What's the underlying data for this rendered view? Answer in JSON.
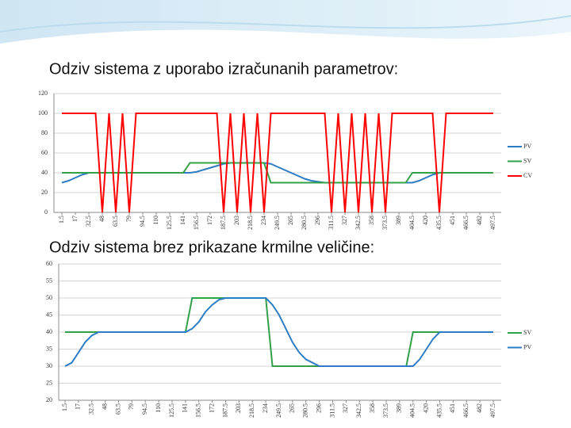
{
  "chart_data": [
    {
      "type": "line",
      "title": "Odziv sistema z uporabo izračunanih parametrov:",
      "x": [
        1.5,
        9.25,
        17,
        24.75,
        32.5,
        40.25,
        48,
        55.75,
        63.5,
        71.25,
        79,
        86.75,
        94.5,
        102.25,
        110,
        117.75,
        125.5,
        133.25,
        141,
        148.75,
        156.5,
        164.25,
        172,
        179.75,
        187.5,
        195.25,
        203,
        210.75,
        218.5,
        226.25,
        234,
        241.75,
        249.5,
        257.25,
        265,
        272.75,
        280.5,
        288.25,
        296,
        303.75,
        311.5,
        319.25,
        327,
        334.75,
        342.5,
        350.25,
        358,
        365.75,
        373.5,
        381.25,
        389,
        396.75,
        404.5,
        412.25,
        420,
        427.75,
        435.5,
        443.25,
        451,
        458.75,
        466.5,
        474.25,
        482,
        489.75,
        497.5
      ],
      "series": [
        {
          "name": "PV",
          "color": "#2e7dc4",
          "values": [
            30,
            32,
            35,
            38,
            40,
            40,
            40,
            40,
            40,
            40,
            40,
            40,
            40,
            40,
            40,
            40,
            40,
            40,
            40,
            40,
            41,
            43,
            45,
            47,
            49,
            50,
            50,
            50,
            50,
            50,
            50,
            49,
            46,
            43,
            40,
            37,
            34,
            32,
            31,
            30,
            30,
            30,
            30,
            30,
            30,
            30,
            30,
            30,
            30,
            30,
            30,
            30,
            30,
            32,
            35,
            38,
            40,
            40,
            40,
            40,
            40,
            40,
            40,
            40,
            40
          ]
        },
        {
          "name": "SV",
          "color": "#33a04a",
          "values": [
            40,
            40,
            40,
            40,
            40,
            40,
            40,
            40,
            40,
            40,
            40,
            40,
            40,
            40,
            40,
            40,
            40,
            40,
            40,
            50,
            50,
            50,
            50,
            50,
            50,
            50,
            50,
            50,
            50,
            50,
            50,
            30,
            30,
            30,
            30,
            30,
            30,
            30,
            30,
            30,
            30,
            30,
            30,
            30,
            30,
            30,
            30,
            30,
            30,
            30,
            30,
            30,
            40,
            40,
            40,
            40,
            40,
            40,
            40,
            40,
            40,
            40,
            40,
            40,
            40
          ]
        },
        {
          "name": "CV",
          "color": "#ff0000",
          "values": [
            100,
            100,
            100,
            100,
            100,
            100,
            0,
            100,
            0,
            100,
            0,
            100,
            100,
            100,
            100,
            100,
            100,
            100,
            100,
            100,
            100,
            100,
            100,
            100,
            0,
            100,
            0,
            100,
            0,
            100,
            0,
            100,
            100,
            100,
            100,
            100,
            100,
            100,
            100,
            100,
            0,
            100,
            0,
            100,
            0,
            100,
            0,
            100,
            0,
            100,
            100,
            100,
            100,
            100,
            100,
            100,
            0,
            100,
            100,
            100,
            100,
            100,
            100,
            100,
            100
          ]
        }
      ],
      "xlim": [
        1.5,
        497.5
      ],
      "xticks": [
        1.5,
        17,
        32.5,
        48,
        63.5,
        79,
        94.5,
        110,
        125.5,
        141,
        156.5,
        172,
        187.5,
        203,
        218.5,
        234,
        249.5,
        265,
        280.5,
        296,
        311.5,
        327,
        342.5,
        358,
        373.5,
        389,
        404.5,
        420,
        435.5,
        451,
        466.5,
        482,
        497.5
      ],
      "ylim": [
        0,
        120
      ],
      "yticks": [
        0,
        20,
        40,
        60,
        80,
        100,
        120
      ],
      "grid": true,
      "legend": "right"
    },
    {
      "type": "line",
      "title": "Odziv sistema brez prikazane krmilne veličine:",
      "x": [
        1.5,
        9.25,
        17,
        24.75,
        32.5,
        40.25,
        48,
        55.75,
        63.5,
        71.25,
        79,
        86.75,
        94.5,
        102.25,
        110,
        117.75,
        125.5,
        133.25,
        141,
        148.75,
        156.5,
        164.25,
        172,
        179.75,
        187.5,
        195.25,
        203,
        210.75,
        218.5,
        226.25,
        234,
        241.75,
        249.5,
        257.25,
        265,
        272.75,
        280.5,
        288.25,
        296,
        303.75,
        311.5,
        319.25,
        327,
        334.75,
        342.5,
        350.25,
        358,
        365.75,
        373.5,
        381.25,
        389,
        396.75,
        404.5,
        412.25,
        420,
        427.75,
        435.5,
        443.25,
        451,
        458.75,
        466.5,
        474.25,
        482,
        489.75,
        497.5
      ],
      "series": [
        {
          "name": "SV",
          "color": "#33a04a",
          "values": [
            40,
            40,
            40,
            40,
            40,
            40,
            40,
            40,
            40,
            40,
            40,
            40,
            40,
            40,
            40,
            40,
            40,
            40,
            40,
            50,
            50,
            50,
            50,
            50,
            50,
            50,
            50,
            50,
            50,
            50,
            50,
            30,
            30,
            30,
            30,
            30,
            30,
            30,
            30,
            30,
            30,
            30,
            30,
            30,
            30,
            30,
            30,
            30,
            30,
            30,
            30,
            30,
            40,
            40,
            40,
            40,
            40,
            40,
            40,
            40,
            40,
            40,
            40,
            40,
            40
          ]
        },
        {
          "name": "PV",
          "color": "#2e7dc4",
          "values": [
            30,
            31,
            34,
            37,
            39,
            40,
            40,
            40,
            40,
            40,
            40,
            40,
            40,
            40,
            40,
            40,
            40,
            40,
            40,
            41,
            43,
            46,
            48,
            49.5,
            50,
            50,
            50,
            50,
            50,
            50,
            50,
            48,
            45,
            41,
            37,
            34,
            32,
            31,
            30,
            30,
            30,
            30,
            30,
            30,
            30,
            30,
            30,
            30,
            30,
            30,
            30,
            30,
            30,
            32,
            35,
            38,
            40,
            40,
            40,
            40,
            40,
            40,
            40,
            40,
            40
          ]
        }
      ],
      "xlim": [
        1.5,
        497.5
      ],
      "xticks": [
        1.5,
        17,
        32.5,
        48,
        63.5,
        79,
        94.5,
        110,
        125.5,
        141,
        156.5,
        172,
        187.5,
        203,
        218.5,
        234,
        249.5,
        265,
        280.5,
        296,
        311.5,
        327,
        342.5,
        358,
        373.5,
        389,
        404.5,
        420,
        435.5,
        451,
        466.5,
        482,
        497.5
      ],
      "ylim": [
        20,
        60
      ],
      "yticks": [
        20,
        25,
        30,
        35,
        40,
        45,
        50,
        55,
        60
      ],
      "grid": true,
      "legend": "right"
    }
  ]
}
